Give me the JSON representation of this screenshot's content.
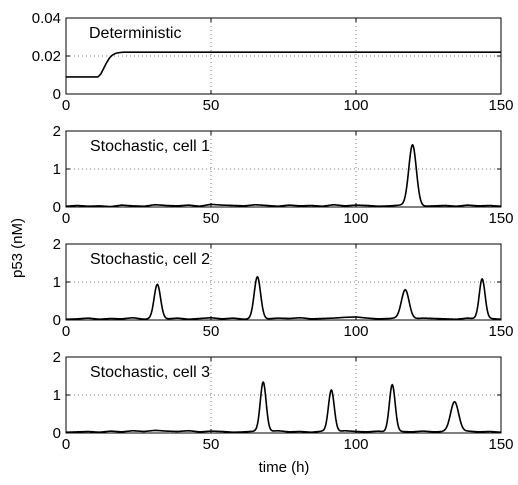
{
  "chart_data": {
    "type": "line",
    "xlabel": "time (h)",
    "ylabel": "p53 (nM)",
    "xlim": [
      0,
      150
    ],
    "x_ticks": [
      "0",
      "50",
      "100",
      "150"
    ],
    "grid": "dotted",
    "panels": [
      {
        "title": "Deterministic",
        "ylim": [
          0,
          0.04
        ],
        "y_ticks": [
          "0",
          "0.02",
          "0.04"
        ],
        "series": [
          {
            "x": [
              0,
              11,
              12,
              13,
              14,
              15,
              16,
              17,
              18,
              19,
              20,
              22,
              25,
              150
            ],
            "y": [
              0.009,
              0.009,
              0.0105,
              0.0135,
              0.0165,
              0.019,
              0.0205,
              0.0213,
              0.0217,
              0.0219,
              0.022,
              0.022,
              0.022,
              0.022
            ]
          }
        ]
      },
      {
        "title": "Stochastic, cell 1",
        "ylim": [
          0,
          2
        ],
        "y_ticks": [
          "0",
          "1",
          "2"
        ],
        "series": [
          {
            "baseline": [
              0.02,
              0.04,
              0.02,
              0.03,
              0.01,
              0.05,
              0.03,
              0.02,
              0.06,
              0.04,
              0.03,
              0.05,
              0.02,
              0.07,
              0.05,
              0.04,
              0.03,
              0.06,
              0.04,
              0.02,
              0.05,
              0.03,
              0.04,
              0.02,
              0.06,
              0.03,
              0.05,
              0.04,
              0.02,
              0.03,
              0.05,
              0.04,
              0.02,
              0.03,
              0.04,
              0.02,
              0.05,
              0.03,
              0.04,
              0.02
            ],
            "peaks": [
              {
                "t": 119.5,
                "h": 1.6,
                "w": 1.3
              }
            ]
          }
        ]
      },
      {
        "title": "Stochastic, cell 2",
        "ylim": [
          0,
          2
        ],
        "y_ticks": [
          "0",
          "1",
          "2"
        ],
        "series": [
          {
            "baseline": [
              0.02,
              0.03,
              0.05,
              0.02,
              0.04,
              0.03,
              0.06,
              0.02,
              0.04,
              0.03,
              0.05,
              0.02,
              0.04,
              0.06,
              0.03,
              0.05,
              0.02,
              0.04,
              0.03,
              0.05,
              0.04,
              0.06,
              0.03,
              0.04,
              0.05,
              0.07,
              0.08,
              0.05,
              0.03,
              0.04,
              0.06,
              0.03,
              0.05,
              0.04,
              0.03,
              0.02,
              0.05,
              0.03,
              0.04,
              0.02
            ],
            "peaks": [
              {
                "t": 31.5,
                "h": 0.9,
                "w": 1.1
              },
              {
                "t": 66,
                "h": 1.1,
                "w": 1.1
              },
              {
                "t": 117,
                "h": 0.75,
                "w": 1.3
              },
              {
                "t": 143.5,
                "h": 1.05,
                "w": 1.0
              }
            ]
          }
        ]
      },
      {
        "title": "Stochastic, cell 3",
        "ylim": [
          0,
          2
        ],
        "y_ticks": [
          "0",
          "1",
          "2"
        ],
        "series": [
          {
            "baseline": [
              0.02,
              0.03,
              0.04,
              0.02,
              0.05,
              0.03,
              0.06,
              0.04,
              0.07,
              0.05,
              0.04,
              0.06,
              0.03,
              0.05,
              0.04,
              0.02,
              0.03,
              0.05,
              0.04,
              0.06,
              0.03,
              0.04,
              0.02,
              0.05,
              0.03,
              0.06,
              0.04,
              0.03,
              0.05,
              0.02,
              0.04,
              0.03,
              0.05,
              0.03,
              0.04,
              0.02,
              0.05,
              0.03,
              0.04,
              0.02
            ],
            "peaks": [
              {
                "t": 68,
                "h": 1.3,
                "w": 1.0
              },
              {
                "t": 91.5,
                "h": 1.1,
                "w": 1.0
              },
              {
                "t": 112.5,
                "h": 1.25,
                "w": 1.0
              },
              {
                "t": 134,
                "h": 0.8,
                "w": 1.4
              }
            ]
          }
        ]
      }
    ]
  }
}
